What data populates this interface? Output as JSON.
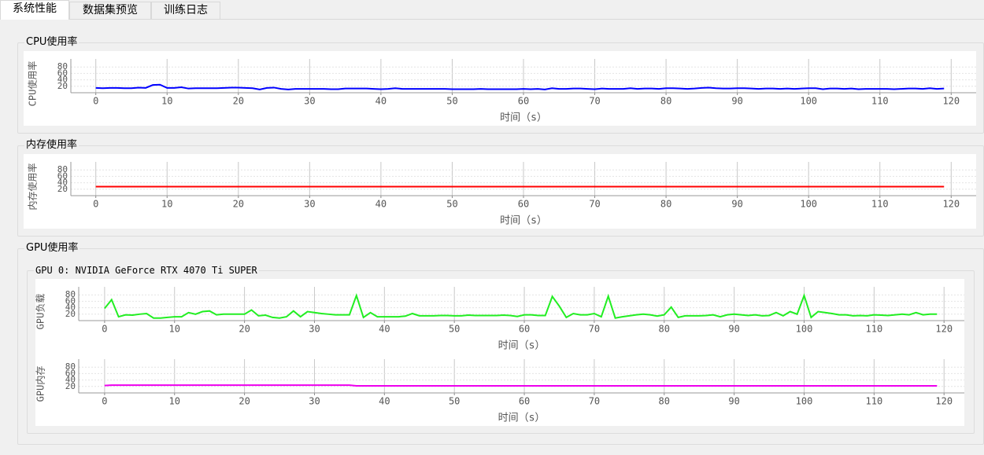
{
  "tabs": [
    "系统性能",
    "数据集预览",
    "训练日志"
  ],
  "groups": {
    "cpu": "CPU使用率",
    "memory": "内存使用率",
    "gpu": "GPU使用率",
    "gpu_device": "GPU 0: NVIDIA GeForce RTX 4070 Ti SUPER"
  },
  "chart_data": [
    {
      "type": "line",
      "ylabel": "CPU使用率",
      "xlabel": "时间（s）",
      "color": "#0000ff",
      "grid": true,
      "x": [
        0,
        1,
        2,
        3,
        4,
        5,
        6,
        7,
        8,
        9,
        10,
        11,
        12,
        13,
        14,
        15,
        16,
        17,
        18,
        19,
        20,
        21,
        22,
        23,
        24,
        25,
        26,
        27,
        28,
        29,
        30,
        31,
        32,
        33,
        34,
        35,
        36,
        37,
        38,
        39,
        40,
        41,
        42,
        43,
        44,
        45,
        46,
        47,
        48,
        49,
        50,
        51,
        52,
        53,
        54,
        55,
        56,
        57,
        58,
        59,
        60,
        61,
        62,
        63,
        64,
        65,
        66,
        67,
        68,
        69,
        70,
        71,
        72,
        73,
        74,
        75,
        76,
        77,
        78,
        79,
        80,
        81,
        82,
        83,
        84,
        85,
        86,
        87,
        88,
        89,
        90,
        91,
        92,
        93,
        94,
        95,
        96,
        97,
        98,
        99,
        100,
        101,
        102,
        103,
        104,
        105,
        106,
        107,
        108,
        109,
        110,
        111,
        112,
        113,
        114,
        115,
        116,
        117,
        118,
        119
      ],
      "values": [
        15,
        14,
        15,
        15,
        14,
        14,
        16,
        15,
        24,
        25,
        15,
        15,
        17,
        13,
        14,
        14,
        14,
        14,
        15,
        16,
        16,
        15,
        14,
        10,
        15,
        16,
        12,
        10,
        12,
        12,
        12,
        12,
        12,
        11,
        11,
        13,
        13,
        13,
        13,
        12,
        11,
        12,
        14,
        12,
        12,
        12,
        12,
        12,
        12,
        12,
        11,
        11,
        11,
        11,
        12,
        11,
        11,
        11,
        11,
        11,
        12,
        11,
        12,
        10,
        14,
        12,
        12,
        13,
        13,
        12,
        11,
        13,
        12,
        12,
        12,
        14,
        12,
        13,
        13,
        12,
        14,
        14,
        13,
        12,
        13,
        15,
        16,
        14,
        13,
        13,
        14,
        14,
        13,
        12,
        13,
        13,
        12,
        13,
        12,
        13,
        14,
        14,
        11,
        13,
        13,
        12,
        13,
        11,
        12,
        12,
        12,
        12,
        11,
        12,
        13,
        13,
        12,
        14,
        12,
        13
      ],
      "xlim": [
        -3.5,
        123.5
      ],
      "xticks": [
        0,
        10,
        20,
        30,
        40,
        50,
        60,
        70,
        80,
        90,
        100,
        110,
        120
      ],
      "ylim": [
        0,
        105
      ],
      "yticks": [
        20,
        40,
        60,
        80
      ]
    },
    {
      "type": "line",
      "ylabel": "内存使用率",
      "xlabel": "时间（s）",
      "color": "#ff0000",
      "grid": true,
      "x": [
        0,
        1,
        2,
        3,
        4,
        5,
        6,
        7,
        8,
        9,
        10,
        11,
        12,
        13,
        14,
        15,
        16,
        17,
        18,
        19,
        20,
        21,
        22,
        23,
        24,
        25,
        26,
        27,
        28,
        29,
        30,
        31,
        32,
        33,
        34,
        35,
        36,
        37,
        38,
        39,
        40,
        41,
        42,
        43,
        44,
        45,
        46,
        47,
        48,
        49,
        50,
        51,
        52,
        53,
        54,
        55,
        56,
        57,
        58,
        59,
        60,
        61,
        62,
        63,
        64,
        65,
        66,
        67,
        68,
        69,
        70,
        71,
        72,
        73,
        74,
        75,
        76,
        77,
        78,
        79,
        80,
        81,
        82,
        83,
        84,
        85,
        86,
        87,
        88,
        89,
        90,
        91,
        92,
        93,
        94,
        95,
        96,
        97,
        98,
        99,
        100,
        101,
        102,
        103,
        104,
        105,
        106,
        107,
        108,
        109,
        110,
        111,
        112,
        113,
        114,
        115,
        116,
        117,
        118,
        119
      ],
      "values": [
        28,
        28,
        28,
        28,
        28,
        28,
        28,
        28,
        28,
        28,
        28,
        28,
        28,
        28,
        28,
        28,
        28,
        28,
        28,
        28,
        28,
        28,
        28,
        28,
        28,
        28,
        28,
        28,
        28,
        28,
        28,
        28,
        28,
        28,
        28,
        28,
        28,
        28,
        28,
        28,
        28,
        28,
        28,
        28,
        28,
        28,
        28,
        28,
        28,
        28,
        28,
        28,
        28,
        28,
        28,
        28,
        28,
        28,
        28,
        28,
        28,
        28,
        28,
        28,
        28,
        28,
        28,
        28,
        28,
        28,
        28,
        28,
        28,
        28,
        28,
        28,
        28,
        28,
        28,
        28,
        28,
        28,
        28,
        28,
        28,
        28,
        28,
        28,
        28,
        28,
        28,
        28,
        28,
        28,
        28,
        28,
        28,
        28,
        28,
        28,
        28,
        28,
        28,
        28,
        28,
        28,
        28,
        28,
        28,
        28,
        28,
        28,
        28,
        28,
        28,
        28,
        28,
        28,
        28,
        28
      ],
      "xlim": [
        -3.5,
        123.5
      ],
      "xticks": [
        0,
        10,
        20,
        30,
        40,
        50,
        60,
        70,
        80,
        90,
        100,
        110,
        120
      ],
      "ylim": [
        0,
        105
      ],
      "yticks": [
        20,
        40,
        60,
        80
      ]
    },
    {
      "type": "line",
      "ylabel": "GPU负载",
      "xlabel": "时间（s）",
      "color": "#22ee22",
      "grid": true,
      "x": [
        0,
        1,
        2,
        3,
        4,
        5,
        6,
        7,
        8,
        9,
        10,
        11,
        12,
        13,
        14,
        15,
        16,
        17,
        18,
        19,
        20,
        21,
        22,
        23,
        24,
        25,
        26,
        27,
        28,
        29,
        30,
        31,
        32,
        33,
        34,
        35,
        36,
        37,
        38,
        39,
        40,
        41,
        42,
        43,
        44,
        45,
        46,
        47,
        48,
        49,
        50,
        51,
        52,
        53,
        54,
        55,
        56,
        57,
        58,
        59,
        60,
        61,
        62,
        63,
        64,
        65,
        66,
        67,
        68,
        69,
        70,
        71,
        72,
        73,
        74,
        75,
        76,
        77,
        78,
        79,
        80,
        81,
        82,
        83,
        84,
        85,
        86,
        87,
        88,
        89,
        90,
        91,
        92,
        93,
        94,
        95,
        96,
        97,
        98,
        99,
        100,
        101,
        102,
        103,
        104,
        105,
        106,
        107,
        108,
        109,
        110,
        111,
        112,
        113,
        114,
        115,
        116,
        117,
        118,
        119
      ],
      "values": [
        38,
        65,
        12,
        18,
        17,
        20,
        22,
        8,
        8,
        10,
        12,
        12,
        25,
        20,
        28,
        30,
        18,
        20,
        20,
        20,
        20,
        33,
        15,
        17,
        10,
        8,
        12,
        30,
        12,
        28,
        25,
        22,
        20,
        18,
        18,
        18,
        78,
        10,
        25,
        12,
        12,
        12,
        12,
        14,
        22,
        15,
        15,
        15,
        16,
        16,
        15,
        15,
        17,
        16,
        16,
        16,
        16,
        17,
        16,
        13,
        18,
        18,
        16,
        16,
        75,
        45,
        10,
        22,
        18,
        18,
        22,
        12,
        76,
        8,
        12,
        15,
        18,
        20,
        18,
        14,
        18,
        42,
        10,
        15,
        15,
        15,
        16,
        18,
        12,
        18,
        20,
        18,
        16,
        18,
        15,
        16,
        25,
        15,
        28,
        20,
        78,
        10,
        28,
        25,
        22,
        18,
        18,
        15,
        16,
        15,
        18,
        17,
        16,
        18,
        20,
        18,
        25,
        18,
        20,
        20
      ],
      "xlim": [
        -3.7,
        122.9
      ],
      "xticks": [
        0,
        10,
        20,
        30,
        40,
        50,
        60,
        70,
        80,
        90,
        100,
        110,
        120
      ],
      "ylim": [
        0,
        105
      ],
      "yticks": [
        20,
        40,
        60,
        80
      ]
    },
    {
      "type": "line",
      "ylabel": "GPU内存",
      "xlabel": "时间（s）",
      "color": "#ee00ee",
      "grid": true,
      "x": [
        0,
        1,
        2,
        3,
        4,
        5,
        6,
        7,
        8,
        9,
        10,
        11,
        12,
        13,
        14,
        15,
        16,
        17,
        18,
        19,
        20,
        21,
        22,
        23,
        24,
        25,
        26,
        27,
        28,
        29,
        30,
        31,
        32,
        33,
        34,
        35,
        36,
        37,
        38,
        39,
        40,
        41,
        42,
        43,
        44,
        45,
        46,
        47,
        48,
        49,
        50,
        51,
        52,
        53,
        54,
        55,
        56,
        57,
        58,
        59,
        60,
        61,
        62,
        63,
        64,
        65,
        66,
        67,
        68,
        69,
        70,
        71,
        72,
        73,
        74,
        75,
        76,
        77,
        78,
        79,
        80,
        81,
        82,
        83,
        84,
        85,
        86,
        87,
        88,
        89,
        90,
        91,
        92,
        93,
        94,
        95,
        96,
        97,
        98,
        99,
        100,
        101,
        102,
        103,
        104,
        105,
        106,
        107,
        108,
        109,
        110,
        111,
        112,
        113,
        114,
        115,
        116,
        117,
        118,
        119
      ],
      "values": [
        23,
        24,
        24,
        24,
        24,
        24,
        24,
        24,
        24,
        24,
        24,
        24,
        24,
        24,
        24,
        24,
        24,
        24,
        24,
        24,
        24,
        24,
        24,
        24,
        24,
        24,
        24,
        24,
        24,
        24,
        24,
        24,
        24,
        24,
        24,
        24,
        22,
        22,
        22,
        22,
        22,
        22,
        22,
        22,
        22,
        22,
        22,
        22,
        22,
        22,
        22,
        22,
        22,
        22,
        22,
        22,
        22,
        22,
        22,
        22,
        22,
        22,
        22,
        22,
        22,
        22,
        22,
        22,
        22,
        22,
        22,
        22,
        22,
        22,
        22,
        22,
        22,
        22,
        22,
        22,
        22,
        22,
        22,
        22,
        22,
        22,
        22,
        22,
        22,
        22,
        22,
        22,
        22,
        22,
        22,
        22,
        22,
        22,
        22,
        22,
        22,
        22,
        22,
        22,
        22,
        22,
        22,
        22,
        22,
        22,
        22,
        22,
        22,
        22,
        22,
        22,
        22,
        22,
        22,
        22
      ],
      "xlim": [
        -3.7,
        122.9
      ],
      "xticks": [
        0,
        10,
        20,
        30,
        40,
        50,
        60,
        70,
        80,
        90,
        100,
        110,
        120
      ],
      "ylim": [
        0,
        105
      ],
      "yticks": [
        20,
        40,
        60,
        80
      ]
    }
  ]
}
